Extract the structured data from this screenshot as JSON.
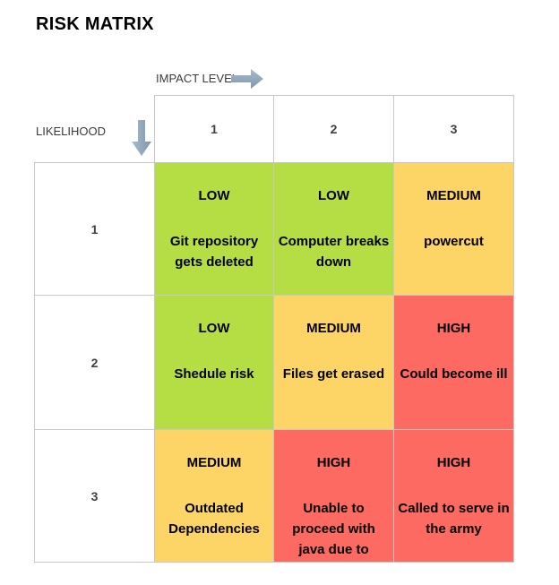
{
  "title": "RISK MATRIX",
  "impact_label": "IMPACT LEVEL",
  "likelihood_label": "LIKELIHOOD",
  "impact_levels": [
    "1",
    "2",
    "3"
  ],
  "likelihood_levels": [
    "1",
    "2",
    "3"
  ],
  "colors": {
    "low": "#b5dd44",
    "medium": "#fdd566",
    "high": "#fd6a61",
    "arrow": "#8ea3b8"
  },
  "icons": {
    "impact_arrow": "arrow-right-icon",
    "likelihood_arrow": "arrow-down-icon"
  },
  "matrix": [
    [
      {
        "level": "LOW",
        "risk": "Git repository gets deleted"
      },
      {
        "level": "LOW",
        "risk": "Computer breaks down"
      },
      {
        "level": "MEDIUM",
        "risk": "powercut"
      }
    ],
    [
      {
        "level": "LOW",
        "risk": "Shedule risk"
      },
      {
        "level": "MEDIUM",
        "risk": "Files get erased"
      },
      {
        "level": "HIGH",
        "risk": "Could become ill"
      }
    ],
    [
      {
        "level": "MEDIUM",
        "risk": "Outdated Dependencies"
      },
      {
        "level": "HIGH",
        "risk": "Unable to proceed with java due to"
      },
      {
        "level": "HIGH",
        "risk": "Called to serve in the army"
      }
    ]
  ]
}
